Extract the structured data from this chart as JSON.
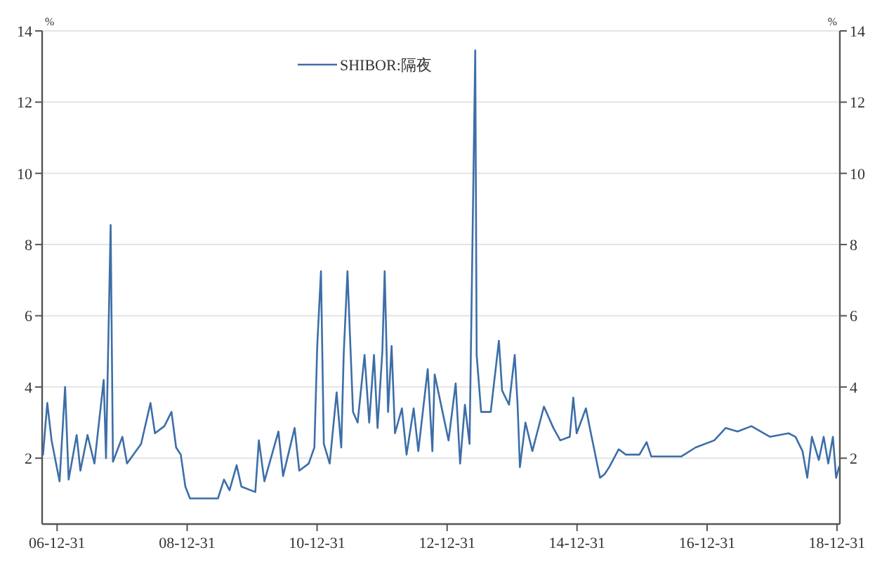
{
  "chart_data": {
    "type": "line",
    "ylabel": "%",
    "y2label": "%",
    "xlim": [
      "2006-10-08",
      "2019-01-16"
    ],
    "xticks": [
      {
        "value": "2006-12-31",
        "label": "06-12-31"
      },
      {
        "value": "2008-12-31",
        "label": "08-12-31"
      },
      {
        "value": "2010-12-31",
        "label": "10-12-31"
      },
      {
        "value": "2012-12-31",
        "label": "12-12-31"
      },
      {
        "value": "2014-12-31",
        "label": "14-12-31"
      },
      {
        "value": "2016-12-31",
        "label": "16-12-31"
      },
      {
        "value": "2018-12-31",
        "label": "18-12-31"
      }
    ],
    "ylim": [
      0.15,
      14
    ],
    "yticks": [
      2,
      4,
      6,
      8,
      10,
      12,
      14
    ],
    "y2lim": [
      0.15,
      14
    ],
    "y2ticks": [
      2,
      4,
      6,
      8,
      10,
      12,
      14
    ],
    "grid": "y",
    "legend": "top",
    "x": [
      "2006-10-13",
      "2006-11-06",
      "2006-11-30",
      "2007-01-14",
      "2007-02-14",
      "2007-03-06",
      "2007-04-20",
      "2007-05-11",
      "2007-06-20",
      "2007-07-29",
      "2007-09-19",
      "2007-10-02",
      "2007-10-28",
      "2007-11-10",
      "2008-01-02",
      "2008-01-28",
      "2008-04-16",
      "2008-06-08",
      "2008-07-03",
      "2008-08-25",
      "2008-10-04",
      "2008-10-30",
      "2008-11-25",
      "2008-12-21",
      "2009-01-16",
      "2009-06-22",
      "2009-07-26",
      "2009-08-26",
      "2009-10-05",
      "2009-11-01",
      "2010-01-18",
      "2010-02-07",
      "2010-03-10",
      "2010-05-28",
      "2010-06-23",
      "2010-08-27",
      "2010-09-22",
      "2010-11-14",
      "2010-12-16",
      "2011-01-01",
      "2011-01-22",
      "2011-02-07",
      "2011-03-12",
      "2011-04-20",
      "2011-05-16",
      "2011-05-30",
      "2011-06-20",
      "2011-07-02",
      "2011-07-21",
      "2011-08-16",
      "2011-09-24",
      "2011-10-20",
      "2011-11-16",
      "2011-12-06",
      "2012-01-02",
      "2012-01-15",
      "2012-02-03",
      "2012-02-23",
      "2012-03-13",
      "2012-04-21",
      "2012-05-17",
      "2012-06-26",
      "2012-07-22",
      "2012-09-13",
      "2012-10-09",
      "2012-10-22",
      "2013-01-08",
      "2013-02-17",
      "2013-03-14",
      "2013-04-10",
      "2013-05-06",
      "2013-05-27",
      "2013-06-07",
      "2013-06-15",
      "2013-07-10",
      "2013-09-02",
      "2013-10-18",
      "2013-11-05",
      "2013-12-14",
      "2014-01-15",
      "2014-01-31",
      "2014-02-13",
      "2014-03-16",
      "2014-04-24",
      "2014-06-28",
      "2014-08-20",
      "2014-09-28",
      "2014-11-20",
      "2014-12-10",
      "2014-12-29",
      "2015-02-19",
      "2015-03-17",
      "2015-05-09",
      "2015-06-04",
      "2015-06-30",
      "2015-08-22",
      "2015-10-01",
      "2015-12-17",
      "2016-01-26",
      "2016-02-21",
      "2016-08-09",
      "2016-10-27",
      "2017-02-09",
      "2017-04-15",
      "2017-06-20",
      "2017-09-06",
      "2017-12-20",
      "2018-04-03",
      "2018-05-12",
      "2018-06-20",
      "2018-07-17",
      "2018-08-12",
      "2018-09-20",
      "2018-10-17",
      "2018-11-12",
      "2018-12-08",
      "2018-12-26",
      "2019-01-11"
    ],
    "series": [
      {
        "name": "SHIBOR:隔夜",
        "color": "#3d6ea8",
        "values": [
          2.1,
          3.55,
          2.5,
          1.35,
          4.0,
          1.4,
          2.65,
          1.65,
          2.65,
          1.85,
          4.2,
          2.0,
          8.55,
          1.9,
          2.6,
          1.85,
          2.4,
          3.55,
          2.7,
          2.9,
          3.3,
          2.3,
          2.1,
          1.2,
          0.87,
          0.87,
          1.4,
          1.1,
          1.8,
          1.2,
          1.05,
          2.5,
          1.35,
          2.75,
          1.5,
          2.85,
          1.65,
          1.85,
          2.3,
          5.15,
          7.25,
          2.4,
          1.85,
          3.85,
          2.3,
          4.95,
          7.25,
          5.7,
          3.3,
          3.0,
          4.9,
          3.0,
          4.9,
          2.85,
          5.0,
          7.25,
          3.3,
          5.15,
          2.7,
          3.4,
          2.1,
          3.4,
          2.2,
          4.5,
          2.2,
          4.35,
          2.5,
          4.1,
          1.85,
          3.5,
          2.4,
          9.65,
          13.45,
          4.9,
          3.3,
          3.3,
          5.3,
          3.9,
          3.5,
          4.9,
          3.5,
          1.75,
          3.0,
          2.2,
          3.45,
          2.85,
          2.5,
          2.6,
          3.7,
          2.7,
          3.4,
          2.75,
          1.45,
          1.55,
          1.75,
          2.25,
          2.1,
          2.1,
          2.45,
          2.05,
          2.05,
          2.3,
          2.5,
          2.85,
          2.75,
          2.9,
          2.6,
          2.7,
          2.6,
          2.2,
          1.45,
          2.6,
          1.95,
          2.6,
          1.85,
          2.6,
          1.45,
          1.75
        ]
      }
    ]
  }
}
